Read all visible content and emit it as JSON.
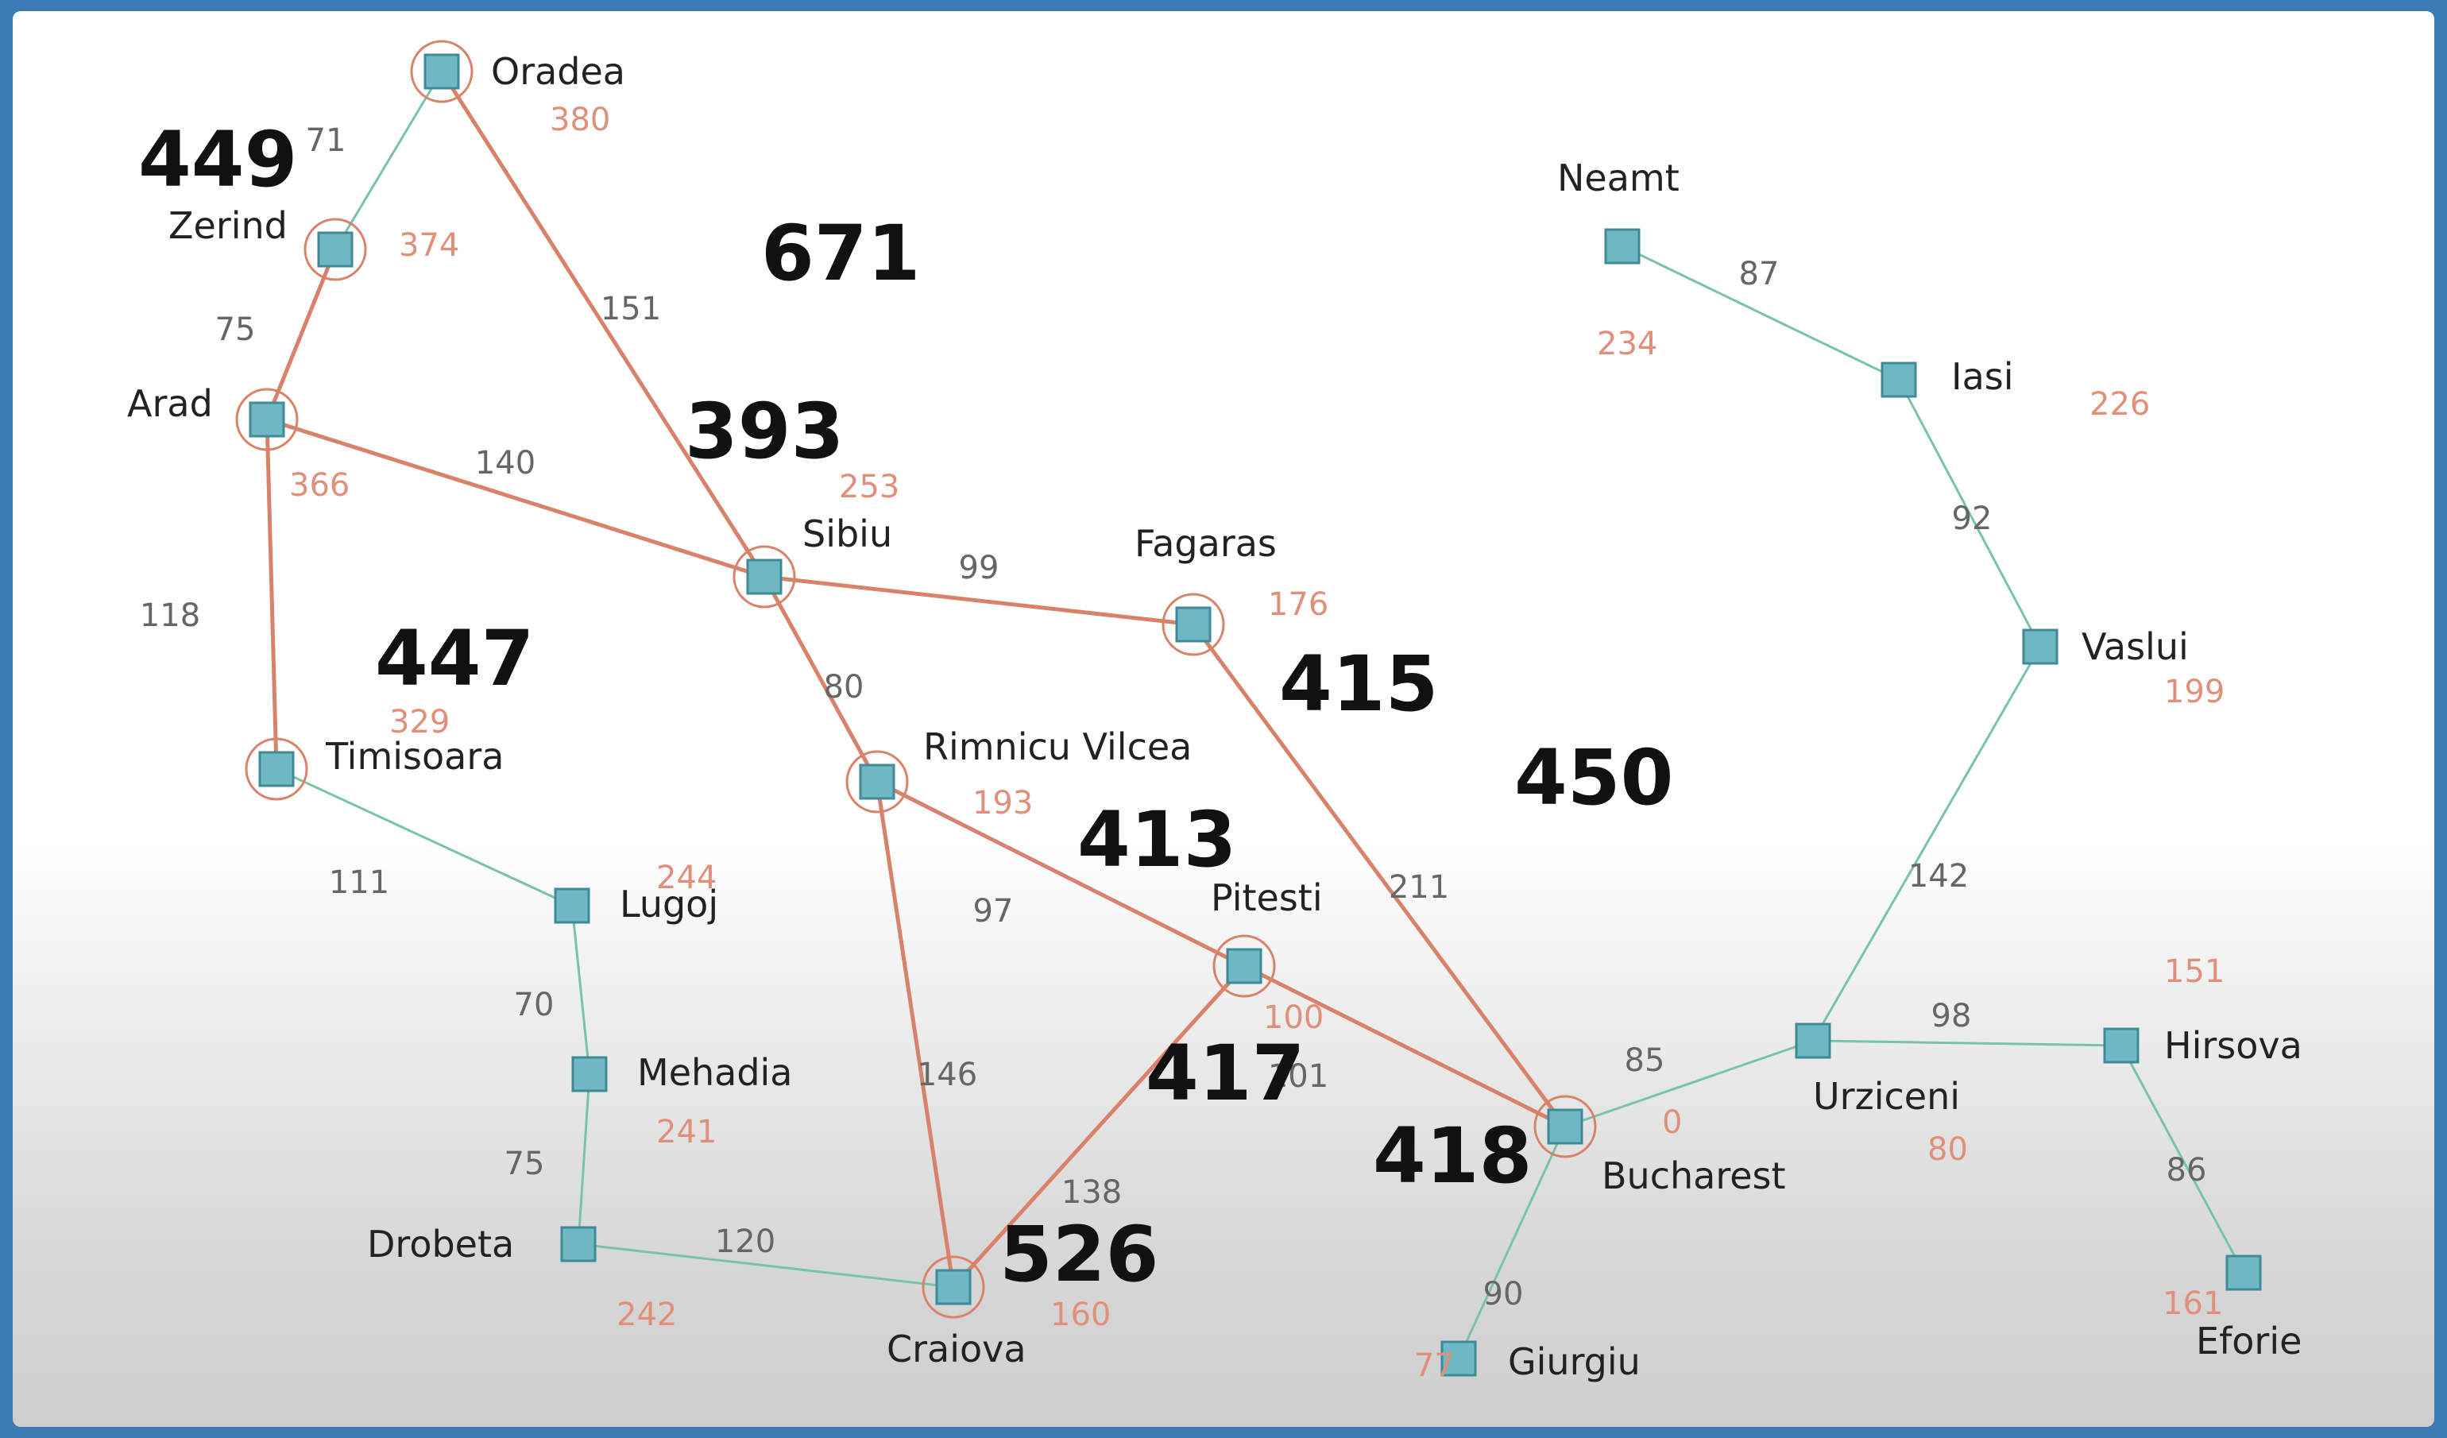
{
  "colors": {
    "path_edge": "#d9826a",
    "other_edge": "#78c4a4",
    "node_fill": "#6fb8c4",
    "node_stroke": "#3f8a9a",
    "heuristic": "#e0907a",
    "frontier_ring": "#d9826a"
  },
  "cities": [
    {
      "id": "oradea",
      "name": "Oradea",
      "h": "380",
      "ring": true
    },
    {
      "id": "zerind",
      "name": "Zerind",
      "h": "374",
      "ring": true
    },
    {
      "id": "arad",
      "name": "Arad",
      "h": "366",
      "ring": true
    },
    {
      "id": "sibiu",
      "name": "Sibiu",
      "h": "253",
      "ring": true
    },
    {
      "id": "fagaras",
      "name": "Fagaras",
      "h": "176",
      "ring": true
    },
    {
      "id": "timisoara",
      "name": "Timisoara",
      "h": "329",
      "ring": true
    },
    {
      "id": "rimnicu",
      "name": "Rimnicu Vilcea",
      "h": "193",
      "ring": true
    },
    {
      "id": "pitesti",
      "name": "Pitesti",
      "h": "100",
      "ring": true
    },
    {
      "id": "lugoj",
      "name": "Lugoj",
      "h": "244",
      "ring": false
    },
    {
      "id": "mehadia",
      "name": "Mehadia",
      "h": "241",
      "ring": false
    },
    {
      "id": "drobeta",
      "name": "Drobeta",
      "h": "242",
      "ring": false
    },
    {
      "id": "craiova",
      "name": "Craiova",
      "h": "160",
      "ring": true
    },
    {
      "id": "bucharest",
      "name": "Bucharest",
      "h": "0",
      "ring": true
    },
    {
      "id": "giurgiu",
      "name": "Giurgiu",
      "h": "77",
      "ring": false
    },
    {
      "id": "urziceni",
      "name": "Urziceni",
      "h": "80",
      "ring": false
    },
    {
      "id": "hirsova",
      "name": "Hirsova",
      "h": "151",
      "ring": false
    },
    {
      "id": "eforie",
      "name": "Eforie",
      "h": "161",
      "ring": false
    },
    {
      "id": "vaslui",
      "name": "Vaslui",
      "h": "199",
      "ring": false
    },
    {
      "id": "iasi",
      "name": "Iasi",
      "h": "226",
      "ring": false
    },
    {
      "id": "neamt",
      "name": "Neamt",
      "h": "234",
      "ring": false
    }
  ],
  "edges": [
    {
      "a": "oradea",
      "b": "zerind",
      "w": "71",
      "explored": false
    },
    {
      "a": "oradea",
      "b": "sibiu",
      "w": "151",
      "explored": true
    },
    {
      "a": "zerind",
      "b": "arad",
      "w": "75",
      "explored": true
    },
    {
      "a": "arad",
      "b": "sibiu",
      "w": "140",
      "explored": true
    },
    {
      "a": "arad",
      "b": "timisoara",
      "w": "118",
      "explored": true
    },
    {
      "a": "sibiu",
      "b": "fagaras",
      "w": "99",
      "explored": true
    },
    {
      "a": "sibiu",
      "b": "rimnicu",
      "w": "80",
      "explored": true
    },
    {
      "a": "timisoara",
      "b": "lugoj",
      "w": "111",
      "explored": false
    },
    {
      "a": "lugoj",
      "b": "mehadia",
      "w": "70",
      "explored": false
    },
    {
      "a": "mehadia",
      "b": "drobeta",
      "w": "75",
      "explored": false
    },
    {
      "a": "drobeta",
      "b": "craiova",
      "w": "120",
      "explored": false
    },
    {
      "a": "rimnicu",
      "b": "pitesti",
      "w": "97",
      "explored": true
    },
    {
      "a": "rimnicu",
      "b": "craiova",
      "w": "146",
      "explored": true
    },
    {
      "a": "fagaras",
      "b": "bucharest",
      "w": "211",
      "explored": true
    },
    {
      "a": "pitesti",
      "b": "bucharest",
      "w": "101",
      "explored": true
    },
    {
      "a": "pitesti",
      "b": "craiova",
      "w": "138",
      "explored": true
    },
    {
      "a": "bucharest",
      "b": "giurgiu",
      "w": "90",
      "explored": false
    },
    {
      "a": "bucharest",
      "b": "urziceni",
      "w": "85",
      "explored": false
    },
    {
      "a": "urziceni",
      "b": "hirsova",
      "w": "98",
      "explored": false
    },
    {
      "a": "hirsova",
      "b": "eforie",
      "w": "86",
      "explored": false
    },
    {
      "a": "urziceni",
      "b": "vaslui",
      "w": "142",
      "explored": false
    },
    {
      "a": "vaslui",
      "b": "iasi",
      "w": "92",
      "explored": false
    },
    {
      "a": "iasi",
      "b": "neamt",
      "w": "87",
      "explored": false
    }
  ],
  "f_scores": [
    {
      "id": "f-zerind",
      "value": "449"
    },
    {
      "id": "f-oradea",
      "value": "671"
    },
    {
      "id": "f-sibiu",
      "value": "393"
    },
    {
      "id": "f-timisoara",
      "value": "447"
    },
    {
      "id": "f-fagaras",
      "value": "415"
    },
    {
      "id": "f-bucharest-via-fagaras",
      "value": "450"
    },
    {
      "id": "f-rimnicu",
      "value": "413"
    },
    {
      "id": "f-pitesti",
      "value": "417"
    },
    {
      "id": "f-bucharest",
      "value": "418"
    },
    {
      "id": "f-craiova",
      "value": "526"
    }
  ]
}
